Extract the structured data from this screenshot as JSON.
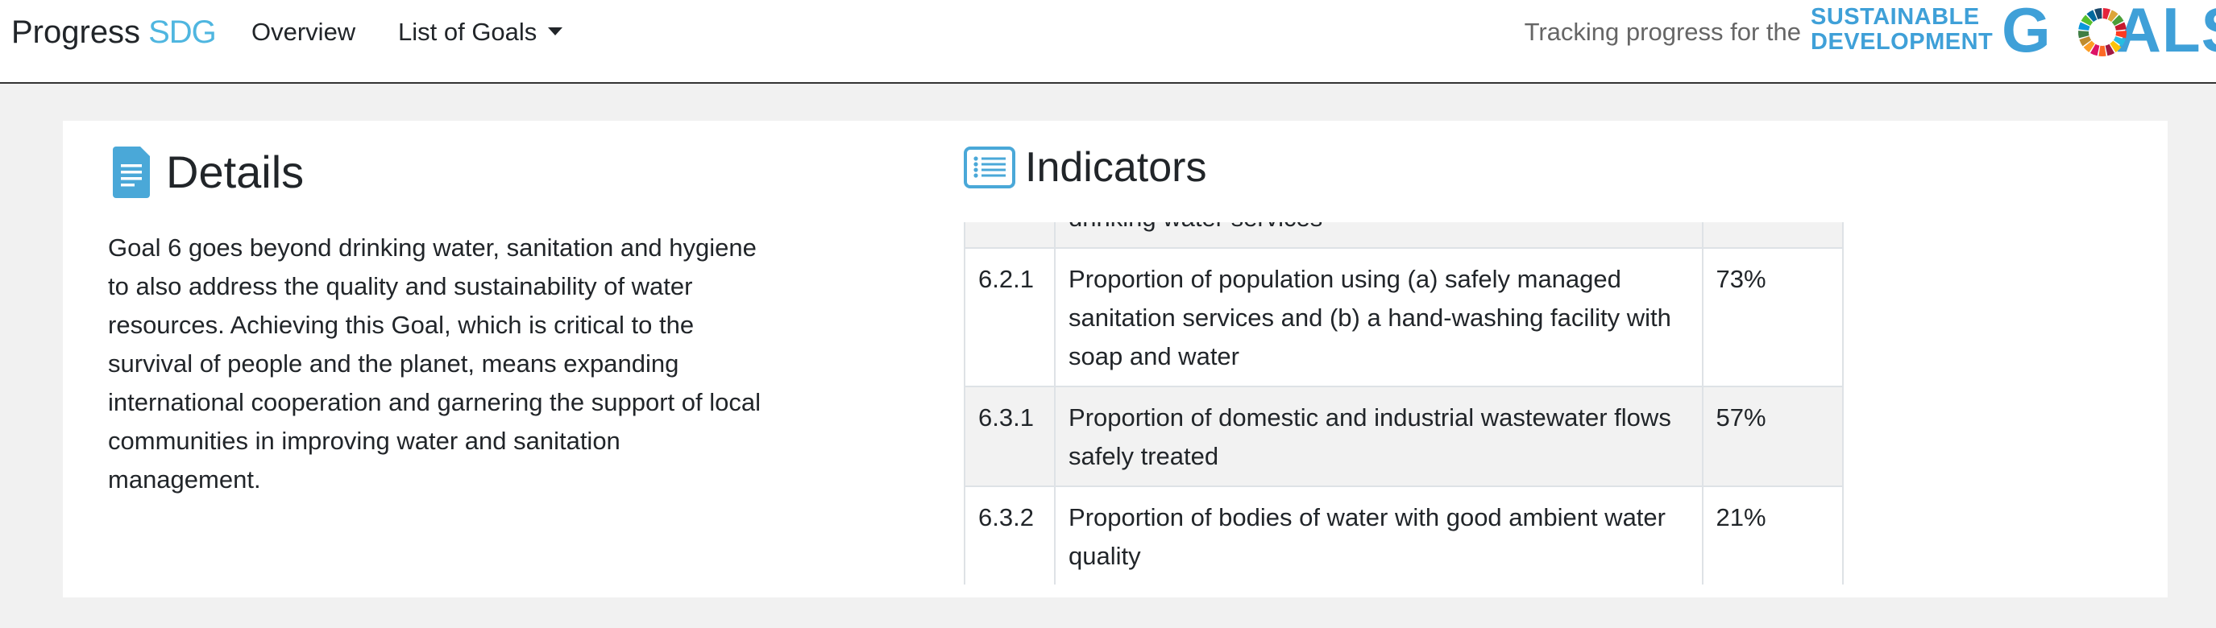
{
  "navbar": {
    "brand_main": "Progress",
    "brand_accent": "SDG",
    "nav_overview": "Overview",
    "nav_goals": "List of Goals",
    "tracking_text": "Tracking progress for the",
    "sdg_line1": "SUSTAINABLE",
    "sdg_line2": "DEVELOPMENT",
    "sdg_g": "G",
    "sdg_als": "ALS"
  },
  "details": {
    "title": "Details",
    "body": "Goal 6 goes beyond drinking water, sanitation and hygiene to also address the quality and sustainability of water resources. Achieving this Goal, which is critical to the survival of people and the planet, means expanding international cooperation and garnering the support of local communities in improving water and sanitation management."
  },
  "indicators": {
    "title": "Indicators",
    "rows": [
      {
        "code": "",
        "description": "drinking water services",
        "value": ""
      },
      {
        "code": "6.2.1",
        "description": "Proportion of population using (a) safely managed sanitation services and (b) a hand-washing facility with soap and water",
        "value": "73%"
      },
      {
        "code": "6.3.1",
        "description": "Proportion of domestic and industrial wastewater flows safely treated",
        "value": "57%"
      },
      {
        "code": "6.3.2",
        "description": "Proportion of bodies of water with good ambient water quality",
        "value": "21%"
      }
    ]
  },
  "colors": {
    "brand_accent": "#4fb6e0",
    "sdg_blue": "#3fa0d8",
    "icon_blue": "#4aa8d8",
    "page_bg": "#f1f1f1",
    "stripe": "#f2f2f2"
  },
  "icons": {
    "details": "document-icon",
    "indicators": "list-icon",
    "dropdown": "caret-down-icon",
    "sdg_wheel": "sdg-color-wheel-icon"
  }
}
